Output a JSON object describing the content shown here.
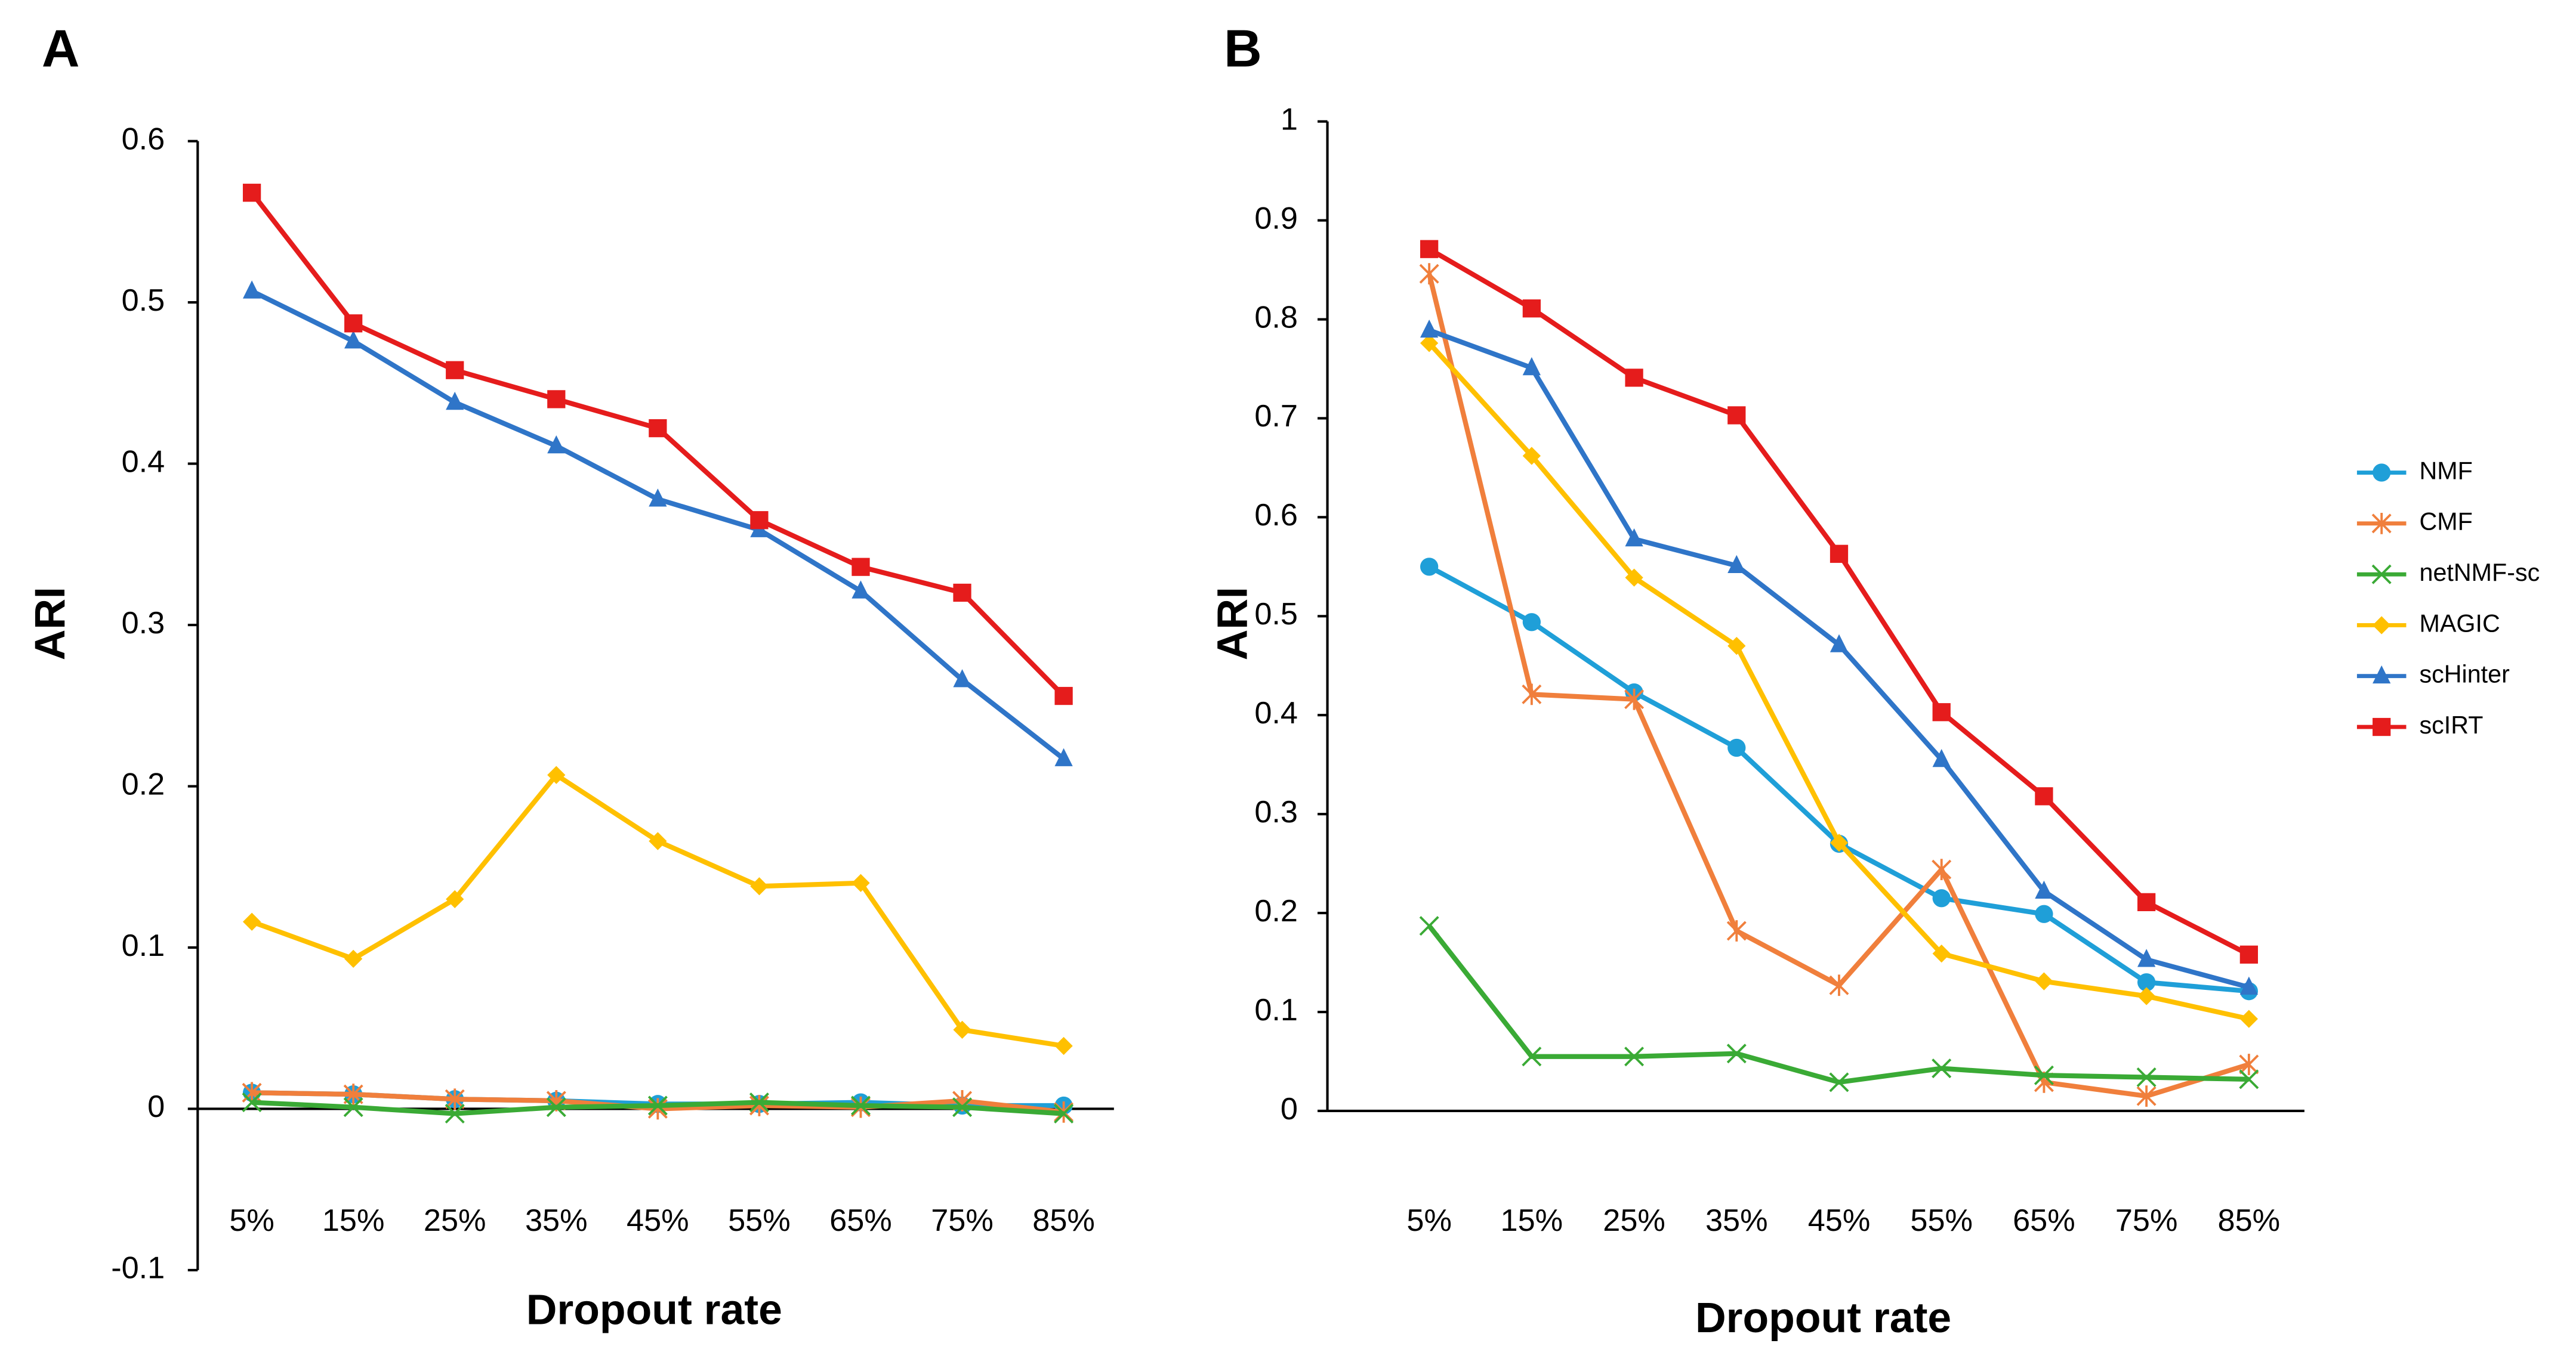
{
  "chart_data": [
    {
      "type": "line",
      "label": "A",
      "x_label": "Dropout rate",
      "y_label": "ARI",
      "categories": [
        "5%",
        "15%",
        "25%",
        "35%",
        "45%",
        "55%",
        "65%",
        "75%",
        "85%"
      ],
      "ylim": [
        -0.1,
        0.6
      ],
      "yticks": [
        -0.1,
        0,
        0.1,
        0.2,
        0.3,
        0.4,
        0.5,
        0.6
      ],
      "legend": false,
      "series": [
        {
          "color": "#1f9fd8",
          "marker": "circle",
          "values": [
            0.01,
            0.009,
            0.006,
            0.005,
            0.003,
            0.003,
            0.004,
            0.002,
            0.002
          ]
        },
        {
          "color": "#f07f3c",
          "marker": "asterisk",
          "values": [
            0.01,
            0.009,
            0.006,
            0.005,
            0.0,
            0.002,
            0.001,
            0.005,
            -0.002
          ]
        },
        {
          "color": "#3aaa35",
          "marker": "cross",
          "values": [
            0.004,
            0.001,
            -0.003,
            0.001,
            0.002,
            0.004,
            0.002,
            0.001,
            -0.003
          ]
        },
        {
          "color": "#ffc000",
          "marker": "diamond",
          "values": [
            0.116,
            0.093,
            0.13,
            0.207,
            0.166,
            0.138,
            0.14,
            0.049,
            0.039
          ]
        },
        {
          "color": "#2f75c8",
          "marker": "triangle",
          "values": [
            0.507,
            0.476,
            0.438,
            0.411,
            0.378,
            0.359,
            0.321,
            0.266,
            0.217
          ]
        },
        {
          "color": "#e51c1c",
          "marker": "square",
          "values": [
            0.568,
            0.487,
            0.458,
            0.44,
            0.422,
            0.365,
            0.336,
            0.32,
            0.256
          ]
        }
      ]
    },
    {
      "type": "line",
      "label": "B",
      "x_label": "Dropout rate",
      "y_label": "ARI",
      "categories": [
        "5%",
        "15%",
        "25%",
        "35%",
        "45%",
        "55%",
        "65%",
        "75%",
        "85%"
      ],
      "ylim": [
        0,
        1
      ],
      "yticks": [
        0,
        0.1,
        0.2,
        0.3,
        0.4,
        0.5,
        0.6,
        0.7,
        0.8,
        0.9,
        1
      ],
      "legend": "right",
      "series": [
        {
          "name": "NMF",
          "color": "#1f9fd8",
          "marker": "circle",
          "values": [
            0.55,
            0.494,
            0.423,
            0.367,
            0.27,
            0.215,
            0.199,
            0.13,
            0.121
          ]
        },
        {
          "name": "CMF",
          "color": "#f07f3c",
          "marker": "asterisk",
          "values": [
            0.846,
            0.421,
            0.416,
            0.182,
            0.127,
            0.244,
            0.029,
            0.015,
            0.047
          ]
        },
        {
          "name": "netNMF-sc",
          "color": "#3aaa35",
          "marker": "cross",
          "values": [
            0.187,
            0.055,
            0.055,
            0.058,
            0.029,
            0.043,
            0.036,
            0.034,
            0.032
          ]
        },
        {
          "name": "MAGIC",
          "color": "#ffc000",
          "marker": "diamond",
          "values": [
            0.776,
            0.662,
            0.539,
            0.47,
            0.271,
            0.159,
            0.131,
            0.116,
            0.093
          ]
        },
        {
          "name": "scHinter",
          "color": "#2f75c8",
          "marker": "triangle",
          "values": [
            0.789,
            0.751,
            0.578,
            0.551,
            0.471,
            0.355,
            0.222,
            0.153,
            0.125
          ]
        },
        {
          "name": "scIRT",
          "color": "#e51c1c",
          "marker": "square",
          "values": [
            0.871,
            0.811,
            0.741,
            0.703,
            0.563,
            0.403,
            0.318,
            0.211,
            0.158
          ]
        }
      ]
    }
  ]
}
